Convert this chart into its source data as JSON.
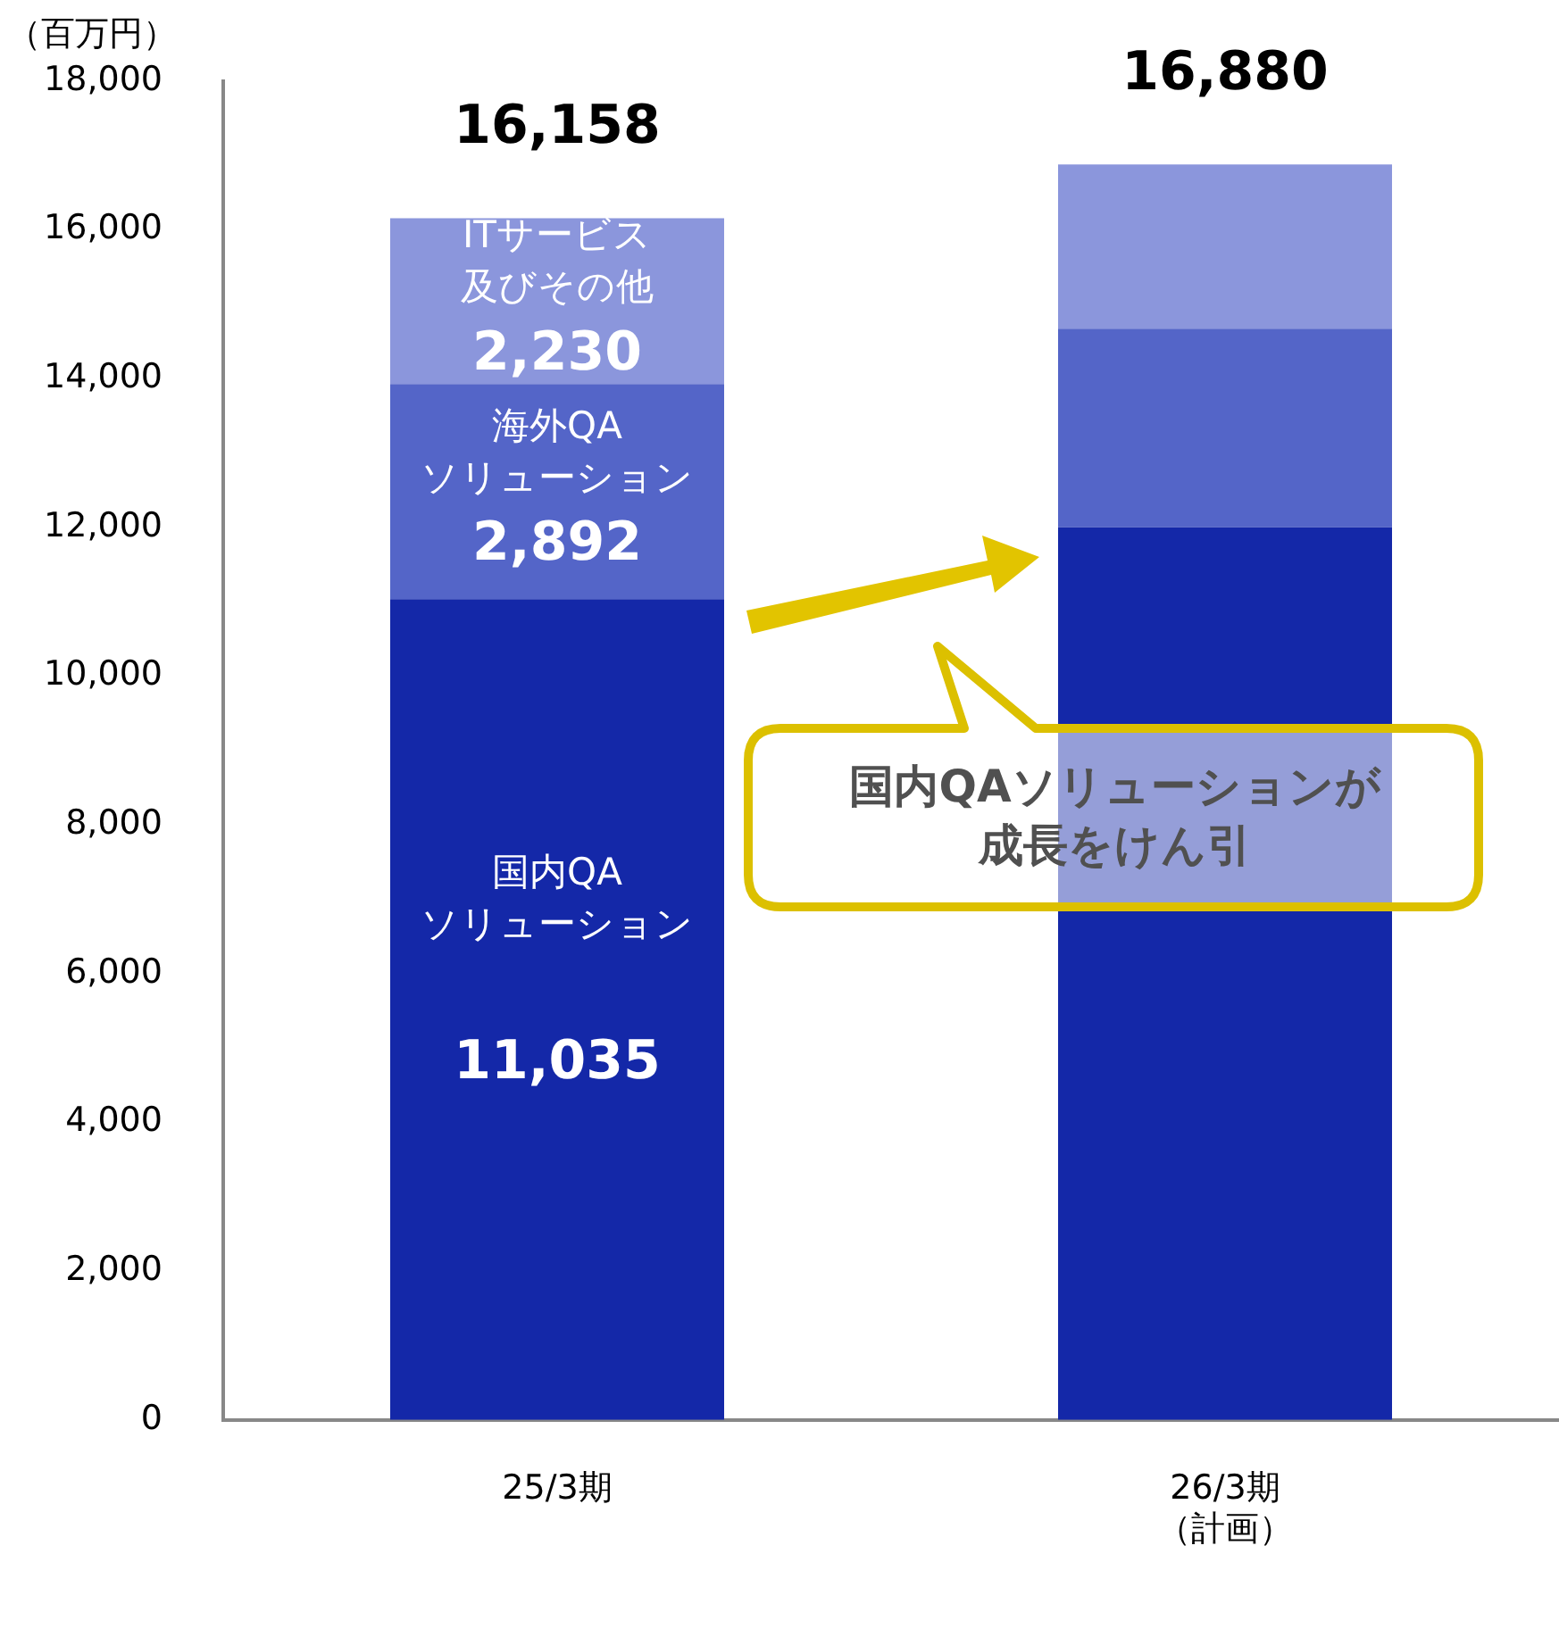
{
  "chart_data": {
    "type": "bar",
    "stacked": true,
    "ylabel": "（百万円）",
    "categories": [
      "25/3期",
      "26/3期（計画）"
    ],
    "series": [
      {
        "name": "国内QAソリューション",
        "color": "#1428a8",
        "values": [
          11035,
          12000
        ],
        "value_labels": [
          "11,035",
          null
        ]
      },
      {
        "name": "海外QAソリューション",
        "color": "#5465c8",
        "values": [
          2892,
          2670
        ],
        "value_labels": [
          "2,892",
          null
        ]
      },
      {
        "name": "ITサービス及びその他",
        "color": "#8b96dc",
        "values": [
          2230,
          2210
        ],
        "value_labels": [
          "2,230",
          null
        ]
      }
    ],
    "totals": [
      "16,158",
      "16,880"
    ],
    "ylim": [
      0,
      18000
    ],
    "yticks": [
      0,
      {
        "value": 2000,
        "label": "2,000"
      },
      {
        "value": 4000,
        "label": "4,000"
      },
      {
        "value": 6000,
        "label": "6,000"
      },
      {
        "value": 8000,
        "label": "8,000"
      },
      {
        "value": 10000,
        "label": "10,000"
      },
      {
        "value": 12000,
        "label": "12,000"
      },
      {
        "value": 14000,
        "label": "14,000"
      },
      {
        "value": 16000,
        "label": "16,000"
      },
      {
        "value": 18000,
        "label": "18,000"
      }
    ],
    "grid": false,
    "legend": false,
    "annotations": [
      "国内QAソリューションが成長をけん引"
    ]
  }
}
